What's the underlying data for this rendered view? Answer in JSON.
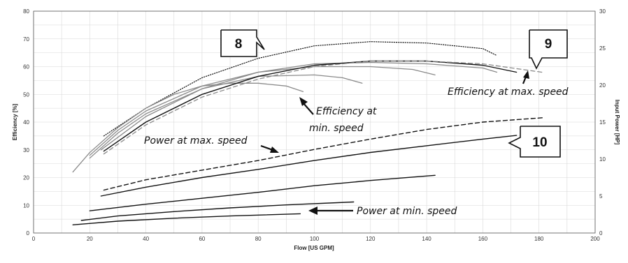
{
  "chart_data": {
    "type": "line",
    "xlabel": "Flow [US GPM]",
    "ylabel": "Efficiency [%]",
    "y2label": "Input Power [HP]",
    "xlim": [
      0,
      200
    ],
    "ylim": [
      0,
      80
    ],
    "y2lim": [
      0,
      30
    ],
    "x_ticks": [
      "0",
      "20",
      "40",
      "60",
      "80",
      "100",
      "120",
      "140",
      "160",
      "180",
      "200"
    ],
    "y_ticks": [
      "0",
      "10",
      "20",
      "30",
      "40",
      "50",
      "60",
      "70",
      "80"
    ],
    "y2_ticks": [
      "0",
      "5",
      "10",
      "15",
      "20",
      "25",
      "30"
    ],
    "grid": true,
    "series": [
      {
        "axis": "left",
        "style": "dotted",
        "color": "#111111",
        "x": [
          25,
          40,
          60,
          80,
          100,
          120,
          140,
          160,
          165
        ],
        "y": [
          35,
          45,
          56,
          63,
          67.5,
          69,
          68.5,
          66.5,
          64
        ]
      },
      {
        "axis": "left",
        "style": "solid",
        "color": "#8a8a8a",
        "x": [
          14,
          20,
          30,
          40,
          50,
          60,
          70,
          80,
          90,
          96
        ],
        "y": [
          22,
          29,
          38,
          45,
          50,
          53,
          54,
          54,
          53,
          51
        ]
      },
      {
        "axis": "left",
        "style": "solid",
        "color": "#8a8a8a",
        "x": [
          20,
          30,
          40,
          60,
          80,
          100,
          110,
          117
        ],
        "y": [
          27,
          36,
          43,
          52,
          56.5,
          57,
          56,
          54
        ]
      },
      {
        "axis": "left",
        "style": "solid",
        "color": "#8a8a8a",
        "x": [
          20,
          30,
          40,
          60,
          80,
          100,
          120,
          135,
          143
        ],
        "y": [
          28,
          37,
          44,
          53,
          58,
          60,
          60,
          59,
          57
        ]
      },
      {
        "axis": "left",
        "style": "solid",
        "color": "#8a8a8a",
        "x": [
          24,
          40,
          60,
          80,
          100,
          120,
          140,
          160,
          165
        ],
        "y": [
          30,
          42,
          52,
          58,
          61,
          61.5,
          61,
          59.5,
          58
        ]
      },
      {
        "axis": "left",
        "style": "solid",
        "color": "#111111",
        "x": [
          25,
          40,
          60,
          80,
          100,
          120,
          140,
          160,
          172
        ],
        "y": [
          29.5,
          40,
          50,
          56.5,
          60.5,
          62,
          62,
          60.5,
          58
        ]
      },
      {
        "axis": "left",
        "style": "dashed",
        "color": "#8a8a8a",
        "x": [
          25,
          40,
          60,
          80,
          100,
          120,
          140,
          160,
          181
        ],
        "y": [
          28.5,
          39,
          49,
          55.5,
          60,
          62,
          62,
          61,
          58
        ]
      },
      {
        "axis": "right",
        "style": "dashed",
        "color": "#111111",
        "x": [
          25,
          40,
          60,
          80,
          100,
          120,
          140,
          160,
          182
        ],
        "y": [
          5.8,
          7.2,
          8.5,
          9.8,
          11.3,
          12.7,
          14,
          15,
          15.6
        ]
      },
      {
        "axis": "right",
        "style": "solid",
        "color": "#111111",
        "x": [
          24,
          40,
          60,
          80,
          100,
          120,
          140,
          160,
          172
        ],
        "y": [
          5,
          6.2,
          7.5,
          8.6,
          9.8,
          10.9,
          11.8,
          12.7,
          13.2
        ]
      },
      {
        "axis": "right",
        "style": "solid",
        "color": "#111111",
        "x": [
          20,
          40,
          60,
          80,
          100,
          120,
          143
        ],
        "y": [
          3,
          3.9,
          4.7,
          5.5,
          6.4,
          7.1,
          7.8
        ]
      },
      {
        "axis": "right",
        "style": "solid",
        "color": "#111111",
        "x": [
          17,
          30,
          50,
          70,
          90,
          114
        ],
        "y": [
          1.7,
          2.3,
          2.9,
          3.4,
          3.8,
          4.2
        ]
      },
      {
        "axis": "right",
        "style": "solid",
        "color": "#111111",
        "x": [
          14,
          30,
          50,
          70,
          95
        ],
        "y": [
          1.1,
          1.6,
          2.0,
          2.3,
          2.6
        ]
      }
    ],
    "annotations": [
      {
        "text": "Efficiency at",
        "text2": "min. speed"
      },
      {
        "text": "Efficiency at max. speed"
      },
      {
        "text": "Power at max. speed"
      },
      {
        "text": "Power at min. speed"
      }
    ],
    "callouts": [
      "8",
      "9",
      "10"
    ]
  }
}
